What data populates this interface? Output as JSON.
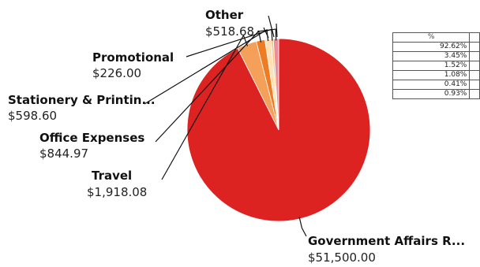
{
  "chart_data": {
    "type": "pie",
    "slices": [
      {
        "label": "Government Affairs R...",
        "value_label": "$51,500.00",
        "value": 51500.0,
        "color": "#dd2222"
      },
      {
        "label": "Travel",
        "value_label": "$1,918.08",
        "value": 1918.08,
        "color": "#f5a05a"
      },
      {
        "label": "Office Expenses",
        "value_label": "$844.97",
        "value": 844.97,
        "color": "#ee7c22"
      },
      {
        "label": "Stationery & Printin...",
        "value_label": "$598.60",
        "value": 598.6,
        "color": "#fde2b8"
      },
      {
        "label": "Promotional",
        "value_label": "$226.00",
        "value": 226.0,
        "color": "#fbc585"
      },
      {
        "label": "Other",
        "value_label": "$518.68",
        "value": 518.68,
        "color": "#e88f9a"
      }
    ],
    "table": {
      "header": "%",
      "rows": [
        "92.62%",
        "3.45%",
        "1.52%",
        "1.08%",
        "0.41%",
        "0.93%"
      ]
    }
  }
}
